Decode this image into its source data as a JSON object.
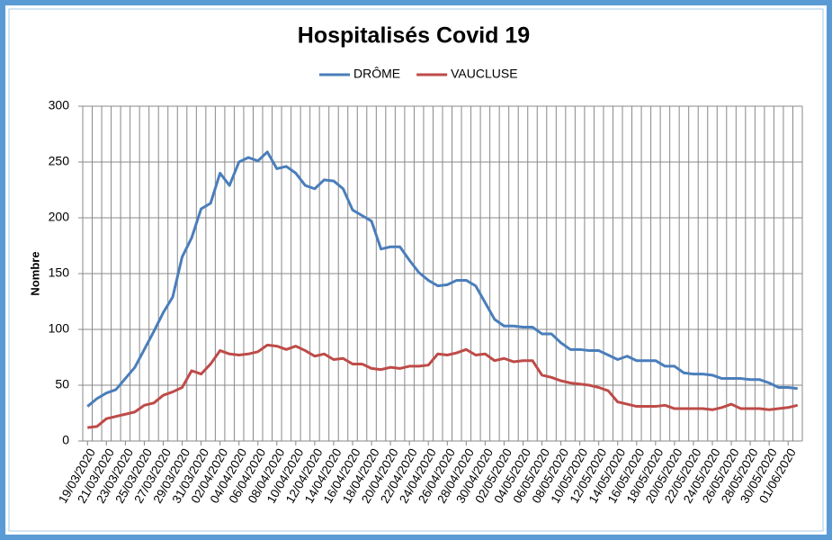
{
  "chart_data": {
    "type": "line",
    "title": "Hospitalisés Covid 19",
    "y_label": "Nombre",
    "categories": [
      "19/03/2020",
      null,
      "21/03/2020",
      null,
      "23/03/2020",
      null,
      "25/03/2020",
      null,
      "27/03/2020",
      null,
      "29/03/2020",
      null,
      "31/03/2020",
      null,
      "02/04/2020",
      null,
      "04/04/2020",
      null,
      "06/04/2020",
      null,
      "08/04/2020",
      null,
      "10/04/2020",
      null,
      "12/04/2020",
      null,
      "14/04/2020",
      null,
      "16/04/2020",
      null,
      "18/04/2020",
      null,
      "20/04/2020",
      null,
      "22/04/2020",
      null,
      "24/04/2020",
      null,
      "26/04/2020",
      null,
      "28/04/2020",
      null,
      "30/04/2020",
      null,
      "02/05/2020",
      null,
      "04/05/2020",
      null,
      "06/05/2020",
      null,
      "08/05/2020",
      null,
      "10/05/2020",
      null,
      "12/05/2020",
      null,
      "14/05/2020",
      null,
      "16/05/2020",
      null,
      "18/05/2020",
      null,
      "20/05/2020",
      null,
      "22/05/2020",
      null,
      "24/05/2020",
      null,
      "26/05/2020",
      null,
      "28/05/2020",
      null,
      "30/05/2020",
      null,
      "01/06/2020",
      null
    ],
    "series": [
      {
        "name": "DRÔME",
        "color": "#4a7ebb",
        "values": [
          31,
          38,
          43,
          46,
          56,
          66,
          82,
          98,
          115,
          129,
          165,
          182,
          208,
          213,
          240,
          229,
          250,
          254,
          251,
          259,
          244,
          246,
          240,
          229,
          226,
          234,
          233,
          226,
          207,
          202,
          197,
          172,
          174,
          174,
          162,
          151,
          144,
          139,
          140,
          144,
          144,
          139,
          124,
          109,
          103,
          103,
          102,
          102,
          96,
          96,
          88,
          82,
          82,
          81,
          81,
          77,
          73,
          76,
          72,
          72,
          72,
          67,
          67,
          61,
          60,
          60,
          59,
          56,
          56,
          56,
          55,
          55,
          52,
          48,
          48,
          47
        ]
      },
      {
        "name": "VAUCLUSE",
        "color": "#be4b48",
        "values": [
          12,
          13,
          20,
          22,
          24,
          26,
          32,
          34,
          41,
          44,
          48,
          63,
          60,
          69,
          81,
          78,
          77,
          78,
          80,
          86,
          85,
          82,
          85,
          81,
          76,
          78,
          73,
          74,
          69,
          69,
          65,
          64,
          66,
          65,
          67,
          67,
          68,
          78,
          77,
          79,
          82,
          77,
          78,
          72,
          74,
          71,
          72,
          72,
          59,
          57,
          54,
          52,
          51,
          50,
          48,
          45,
          35,
          33,
          31,
          31,
          31,
          32,
          29,
          29,
          29,
          29,
          28,
          30,
          33,
          29,
          29,
          29,
          28,
          29,
          30,
          32
        ]
      }
    ],
    "ylim": [
      0,
      300
    ],
    "yticks": [
      0,
      50,
      100,
      150,
      200,
      250,
      300
    ],
    "grid": true,
    "legend": "top"
  }
}
